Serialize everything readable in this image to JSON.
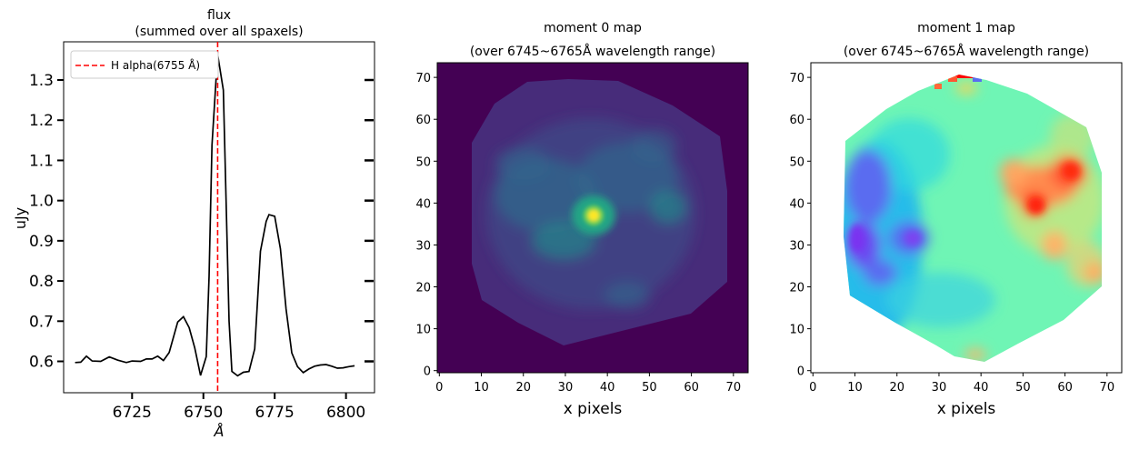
{
  "chart_data": [
    {
      "type": "line",
      "title": "flux",
      "subtitle": "(summed over all spaxels)",
      "xlabel": "Å",
      "ylabel": "uJy",
      "xlim": [
        6701,
        6810
      ],
      "ylim": [
        0.522,
        1.395
      ],
      "xticks": [
        6725,
        6750,
        6775,
        6800
      ],
      "xtick_labels": [
        "6725",
        "6750",
        "6775",
        "6800"
      ],
      "yticks": [
        0.6,
        0.7,
        0.8,
        0.9,
        1.0,
        1.1,
        1.2,
        1.3
      ],
      "ytick_labels": [
        "0.6",
        "0.7",
        "0.8",
        "0.9",
        "1.0",
        "1.1",
        "1.2",
        "1.3"
      ],
      "legend": {
        "label": "H alpha(6755 Å)",
        "placement": "top-left"
      },
      "vline": {
        "x": 6755,
        "color": "#ff0000",
        "style": "dashed"
      },
      "series": [
        {
          "name": "flux",
          "color": "#000000",
          "x": [
            6705,
            6707,
            6709,
            6711,
            6714,
            6717,
            6720,
            6723,
            6725,
            6728,
            6730,
            6732,
            6734,
            6736,
            6738,
            6741,
            6743,
            6745,
            6747,
            6749,
            6751,
            6752,
            6753,
            6755,
            6757,
            6759,
            6760,
            6762,
            6764,
            6766,
            6768,
            6770,
            6772,
            6773,
            6775,
            6777,
            6779,
            6781,
            6783,
            6785,
            6787,
            6789,
            6791,
            6793,
            6795,
            6797,
            6799,
            6801,
            6803
          ],
          "values": [
            0.597,
            0.598,
            0.613,
            0.601,
            0.6,
            0.611,
            0.603,
            0.597,
            0.601,
            0.6,
            0.606,
            0.606,
            0.613,
            0.602,
            0.622,
            0.698,
            0.711,
            0.684,
            0.633,
            0.565,
            0.612,
            0.811,
            1.138,
            1.364,
            1.275,
            0.7,
            0.575,
            0.564,
            0.573,
            0.575,
            0.631,
            0.874,
            0.948,
            0.965,
            0.961,
            0.88,
            0.73,
            0.621,
            0.587,
            0.572,
            0.581,
            0.588,
            0.591,
            0.592,
            0.588,
            0.583,
            0.584,
            0.587,
            0.589
          ]
        }
      ]
    },
    {
      "type": "heatmap",
      "title": "moment 0 map",
      "subtitle": "(over 6745~6765Å wavelength range)",
      "xlabel": "x pixels",
      "ylabel": "",
      "colormap": "viridis",
      "xlim": [
        0,
        74
      ],
      "ylim": [
        0,
        74
      ],
      "xticks": [
        0,
        10,
        20,
        30,
        40,
        50,
        60,
        70
      ],
      "yticks": [
        0,
        10,
        20,
        30,
        40,
        50,
        60,
        70
      ],
      "tick_labels": [
        "0",
        "10",
        "20",
        "30",
        "40",
        "50",
        "60",
        "70"
      ]
    },
    {
      "type": "heatmap",
      "title": "moment 1 map",
      "subtitle": "(over 6745~6765Å wavelength range)",
      "xlabel": "x pixels",
      "ylabel": "",
      "colormap": "rainbow",
      "xlim": [
        0,
        74
      ],
      "ylim": [
        0,
        74
      ],
      "xticks": [
        0,
        10,
        20,
        30,
        40,
        50,
        60,
        70
      ],
      "yticks": [
        0,
        10,
        20,
        30,
        40,
        50,
        60,
        70
      ],
      "tick_labels": [
        "0",
        "10",
        "20",
        "30",
        "40",
        "50",
        "60",
        "70"
      ]
    }
  ],
  "colors": {
    "line": "#000000",
    "marker_line": "#ff0000",
    "background": "#ffffff"
  }
}
